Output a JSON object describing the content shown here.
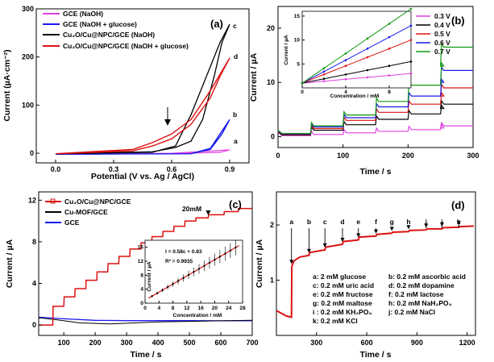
{
  "chart_data": [
    {
      "panel": "(a)",
      "type": "line",
      "xlabel": "Potential (V vs. Ag / AgCl)",
      "ylabel": "Current (µA·cm⁻²)",
      "xlim": [
        -0.1,
        1.0
      ],
      "ylim": [
        -20,
        300
      ],
      "xticks": [
        "0.0",
        "0.3",
        "0.6",
        "0.9"
      ],
      "yticks": [
        "0",
        "100",
        "200",
        "300"
      ],
      "legend": [
        "GCE (NaOH)",
        "GCE (NaOH + glucose)",
        "Cu₂O/Cu@NPC/GCE (NaOH)",
        "Cu₂O/Cu@NPC/GCE (NaOH + glucose)"
      ],
      "colors": [
        "#e040e0",
        "#1a1aee",
        "#000000",
        "#dd1111"
      ],
      "curve_labels": [
        "a",
        "b",
        "c",
        "d"
      ],
      "series": [
        {
          "forward": [
            [
              0,
              -2
            ],
            [
              0.6,
              -1
            ],
            [
              0.85,
              2
            ],
            [
              0.9,
              7
            ]
          ],
          "reverse": [
            [
              0.9,
              7
            ],
            [
              0.6,
              0
            ],
            [
              0,
              -2
            ]
          ]
        },
        {
          "forward": [
            [
              0,
              -2
            ],
            [
              0.7,
              -1
            ],
            [
              0.8,
              10
            ],
            [
              0.85,
              40
            ],
            [
              0.9,
              70
            ]
          ],
          "reverse": [
            [
              0.9,
              70
            ],
            [
              0.86,
              40
            ],
            [
              0.8,
              8
            ],
            [
              0.7,
              -1
            ],
            [
              0,
              -2
            ]
          ]
        },
        {
          "forward": [
            [
              0,
              -1
            ],
            [
              0.5,
              2
            ],
            [
              0.62,
              15
            ],
            [
              0.7,
              80
            ],
            [
              0.78,
              160
            ],
            [
              0.85,
              230
            ],
            [
              0.9,
              268
            ]
          ],
          "reverse": [
            [
              0.9,
              268
            ],
            [
              0.86,
              230
            ],
            [
              0.82,
              160
            ],
            [
              0.76,
              70
            ],
            [
              0.7,
              25
            ],
            [
              0.62,
              12
            ],
            [
              0.5,
              3
            ],
            [
              0,
              -1
            ]
          ]
        },
        {
          "forward": [
            [
              0,
              -1
            ],
            [
              0.4,
              8
            ],
            [
              0.5,
              22
            ],
            [
              0.6,
              40
            ],
            [
              0.7,
              70
            ],
            [
              0.8,
              130
            ],
            [
              0.9,
              198
            ]
          ],
          "reverse": [
            [
              0.9,
              198
            ],
            [
              0.85,
              160
            ],
            [
              0.8,
              115
            ],
            [
              0.7,
              60
            ],
            [
              0.6,
              30
            ],
            [
              0.5,
              15
            ],
            [
              0.4,
              5
            ],
            [
              0,
              -1
            ]
          ]
        }
      ]
    },
    {
      "panel": "(b)",
      "type": "line",
      "xlabel": "Time / s",
      "ylabel": "Current / µA",
      "xlim": [
        0,
        300
      ],
      "ylim": [
        -2,
        24
      ],
      "xticks": [
        "0",
        "100",
        "200",
        "300"
      ],
      "yticks": [
        "0",
        "10",
        "20"
      ],
      "series": [
        {
          "name": "0.3 V",
          "color": "#e040e0",
          "steps": [
            0.4,
            0.7,
            1.0,
            1.3,
            1.6,
            2.0
          ]
        },
        {
          "name": "0.4 V",
          "color": "#000000",
          "steps": [
            1.2,
            2.2,
            3.2,
            4.2,
            5.2,
            6.0
          ]
        },
        {
          "name": "0.5 V",
          "color": "#dd1111",
          "steps": [
            1.5,
            3.0,
            4.5,
            6.0,
            7.5,
            9.0
          ]
        },
        {
          "name": "0.6 V",
          "color": "#1a1aee",
          "steps": [
            1.8,
            3.5,
            5.5,
            7.5,
            10.0,
            12.2
          ]
        },
        {
          "name": "0.7 V",
          "color": "#119911",
          "steps": [
            2.0,
            4.0,
            6.5,
            9.5,
            13.0,
            16.5
          ]
        }
      ],
      "inset": {
        "xlabel": "Concentration / mM",
        "ylabel": "Current / µA",
        "xlim": [
          0,
          10
        ],
        "ylim": [
          0,
          16
        ],
        "xticks": [
          "0",
          "4",
          "8"
        ],
        "yticks": [
          "5",
          "10",
          "15"
        ],
        "slopes": [
          0.2,
          0.45,
          0.9,
          1.2,
          1.55
        ]
      }
    },
    {
      "panel": "(c)",
      "type": "line",
      "xlabel": "Time / s",
      "ylabel": "Current / µA",
      "xlim": [
        20,
        700
      ],
      "ylim": [
        -1,
        12.8
      ],
      "xticks": [
        "100",
        "200",
        "300",
        "400",
        "500",
        "600",
        "700"
      ],
      "yticks": [
        "0",
        "4",
        "8",
        "12"
      ],
      "legend": [
        "Cu₂O/Cu@NPC/GCE",
        "Cu-MOF/GCE",
        "GCE"
      ],
      "colors": [
        "#dd1111",
        "#000000",
        "#1a1aee"
      ],
      "annotation": "20mM",
      "inset": {
        "xlabel": "Concentration / mM",
        "ylabel": "Current / µA",
        "equation": "I = 0.58c + 0.83",
        "r2": "R² = 0.9935",
        "xlim": [
          0,
          28
        ],
        "ylim": [
          0,
          18
        ],
        "xticks": [
          "0",
          "4",
          "8",
          "12",
          "16",
          "20",
          "24",
          "28"
        ],
        "yticks": [
          "0",
          "4",
          "8",
          "12",
          "16"
        ]
      }
    },
    {
      "panel": "(d)",
      "type": "line",
      "xlabel": "Time / s",
      "ylabel": "Current / µA",
      "xlim": [
        60,
        1250
      ],
      "ylim": [
        0,
        2.6
      ],
      "xticks": [
        "300",
        "600",
        "900",
        "1200"
      ],
      "yticks": [
        "1",
        "2"
      ],
      "injections": [
        "a",
        "b",
        "c",
        "d",
        "e",
        "f",
        "g",
        "h",
        "i",
        "j",
        "k"
      ],
      "injection_times": [
        150,
        255,
        350,
        455,
        550,
        655,
        750,
        850,
        955,
        1050,
        1150
      ],
      "legend_rows": [
        [
          "a: 2 mM glucose",
          "b: 0.2 mM ascorbic acid"
        ],
        [
          "c: 0.2 mM uric acid",
          "d: 0.2 mM dopamine"
        ],
        [
          "e: 0.2 mM fructose",
          "f: 0.2 mM lactose"
        ],
        [
          "g: 0.2 mM maltose",
          "h: 0.2 mM NaH₂PO₄"
        ],
        [
          "i : 0.2 mM KH₂PO₄",
          "j: 0.2 mM NaCl"
        ],
        [
          "k: 0.2 mM KCl",
          ""
        ]
      ]
    }
  ]
}
